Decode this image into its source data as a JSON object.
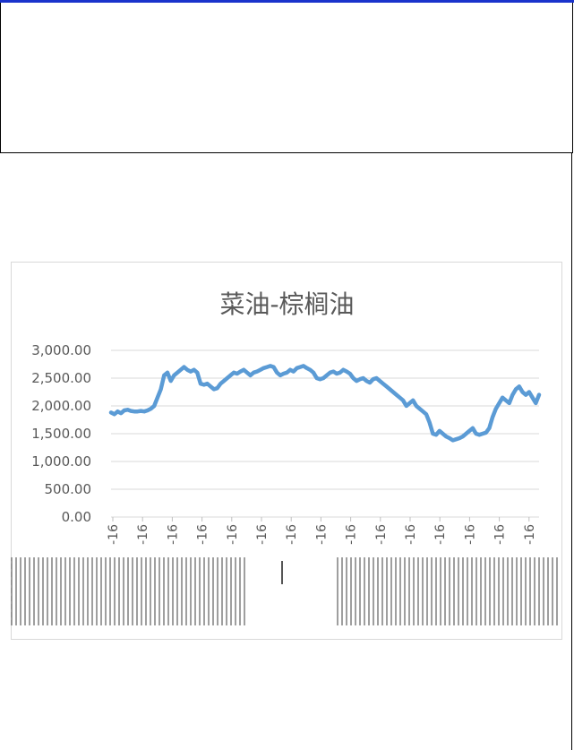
{
  "colors": {
    "line": "#5b9bd5",
    "grid": "#d9d9d9",
    "text": "#595959",
    "top_bar": "#1a33cc"
  },
  "chart_data": {
    "type": "line",
    "title": "菜油-棕榈油",
    "xlabel": "",
    "ylabel": "",
    "ylim": [
      0,
      3000
    ],
    "yticks": [
      "3,000.00",
      "2,500.00",
      "2,000.00",
      "1,500.00",
      "1,000.00",
      "500.00",
      "0.00"
    ],
    "xtick_suffix": [
      "-16",
      "-16",
      "-16",
      "-16",
      "-16",
      "-16",
      "-16",
      "-16",
      "-16",
      "-16",
      "-16",
      "-16",
      "-16",
      "-16",
      "-16"
    ],
    "grid": true,
    "legend": "none",
    "series": [
      {
        "values": [
          1880,
          1850,
          1900,
          1870,
          1920,
          1930,
          1910,
          1900,
          1900,
          1910,
          1900,
          1920,
          1950,
          2000,
          2150,
          2300,
          2550,
          2600,
          2450,
          2550,
          2600,
          2650,
          2700,
          2650,
          2620,
          2650,
          2600,
          2400,
          2380,
          2400,
          2350,
          2300,
          2320,
          2400,
          2450,
          2500,
          2550,
          2600,
          2580,
          2620,
          2650,
          2600,
          2550,
          2600,
          2620,
          2650,
          2680,
          2700,
          2720,
          2700,
          2600,
          2550,
          2580,
          2600,
          2650,
          2620,
          2680,
          2700,
          2720,
          2680,
          2650,
          2600,
          2500,
          2480,
          2500,
          2550,
          2600,
          2620,
          2580,
          2600,
          2650,
          2620,
          2580,
          2500,
          2450,
          2480,
          2500,
          2450,
          2420,
          2480,
          2500,
          2450,
          2400,
          2350,
          2300,
          2250,
          2200,
          2150,
          2100,
          2000,
          2050,
          2100,
          2000,
          1950,
          1900,
          1850,
          1700,
          1500,
          1480,
          1550,
          1500,
          1450,
          1420,
          1380,
          1400,
          1420,
          1450,
          1500,
          1550,
          1600,
          1500,
          1480,
          1500,
          1520,
          1600,
          1800,
          1950,
          2050,
          2150,
          2100,
          2050,
          2200,
          2300,
          2350,
          2250,
          2200,
          2250,
          2150,
          2050,
          2200
        ]
      }
    ]
  }
}
